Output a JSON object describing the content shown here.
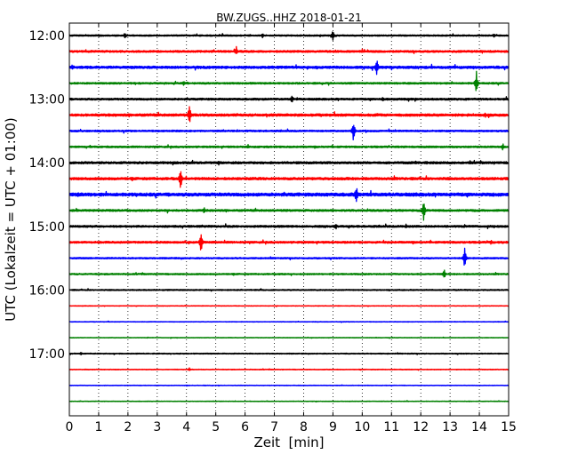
{
  "chart_data": {
    "type": "line",
    "title": "BW.ZUGS..HHZ 2018-01-21",
    "xlabel": "Zeit  [min]",
    "ylabel": "UTC (Lokalzeit = UTC + 01:00)",
    "xlim": [
      0,
      15
    ],
    "x_ticks": [
      "0",
      "1",
      "2",
      "3",
      "4",
      "5",
      "6",
      "7",
      "8",
      "9",
      "10",
      "11",
      "12",
      "13",
      "14",
      "15"
    ],
    "y_tick_labels": [
      "12:00",
      "13:00",
      "14:00",
      "15:00",
      "16:00",
      "17:00"
    ],
    "grid": "vertical dotted",
    "row_start": "12:00",
    "row_interval_minutes": 15,
    "colors": [
      "#000000",
      "#ff0000",
      "#0000ff",
      "#008000"
    ],
    "traces": [
      {
        "start": "12:00",
        "color": "#000000",
        "noise": 0.6,
        "events": [
          {
            "t": 1.9,
            "amp": 4
          },
          {
            "t": 6.6,
            "amp": 3
          },
          {
            "t": 9.0,
            "amp": 7
          },
          {
            "t": 14.5,
            "amp": 3
          }
        ]
      },
      {
        "start": "12:15",
        "color": "#ff0000",
        "noise": 0.8,
        "events": [
          {
            "t": 5.7,
            "amp": 6
          },
          {
            "t": 10.0,
            "amp": 3
          }
        ]
      },
      {
        "start": "12:30",
        "color": "#0000ff",
        "noise": 1.0,
        "events": [
          {
            "t": 0.1,
            "amp": 4
          },
          {
            "t": 10.5,
            "amp": 12
          }
        ]
      },
      {
        "start": "12:45",
        "color": "#008000",
        "noise": 0.7,
        "events": [
          {
            "t": 3.9,
            "amp": 4
          },
          {
            "t": 13.9,
            "amp": 16
          }
        ]
      },
      {
        "start": "13:00",
        "color": "#000000",
        "noise": 0.8,
        "events": [
          {
            "t": 7.6,
            "amp": 5
          },
          {
            "t": 10.7,
            "amp": 3
          }
        ]
      },
      {
        "start": "13:15",
        "color": "#ff0000",
        "noise": 1.0,
        "events": [
          {
            "t": 4.1,
            "amp": 14
          },
          {
            "t": 14.2,
            "amp": 4
          }
        ]
      },
      {
        "start": "13:30",
        "color": "#0000ff",
        "noise": 0.7,
        "events": [
          {
            "t": 9.7,
            "amp": 14
          }
        ]
      },
      {
        "start": "13:45",
        "color": "#008000",
        "noise": 0.7,
        "events": [
          {
            "t": 6.1,
            "amp": 3
          },
          {
            "t": 14.8,
            "amp": 5
          }
        ]
      },
      {
        "start": "14:00",
        "color": "#000000",
        "noise": 0.9,
        "events": [
          {
            "t": 5.1,
            "amp": 3
          },
          {
            "t": 12.2,
            "amp": 3
          }
        ]
      },
      {
        "start": "14:15",
        "color": "#ff0000",
        "noise": 1.0,
        "events": [
          {
            "t": 3.8,
            "amp": 14
          }
        ]
      },
      {
        "start": "14:30",
        "color": "#0000ff",
        "noise": 1.3,
        "events": [
          {
            "t": 0.3,
            "amp": 4
          },
          {
            "t": 9.8,
            "amp": 13
          }
        ]
      },
      {
        "start": "14:45",
        "color": "#008000",
        "noise": 0.8,
        "events": [
          {
            "t": 4.6,
            "amp": 4
          },
          {
            "t": 12.1,
            "amp": 14
          }
        ]
      },
      {
        "start": "15:00",
        "color": "#000000",
        "noise": 0.8,
        "events": [
          {
            "t": 9.1,
            "amp": 4
          },
          {
            "t": 11.5,
            "amp": 3
          }
        ]
      },
      {
        "start": "15:15",
        "color": "#ff0000",
        "noise": 0.8,
        "events": [
          {
            "t": 4.5,
            "amp": 15
          },
          {
            "t": 14.4,
            "amp": 3
          }
        ]
      },
      {
        "start": "15:30",
        "color": "#0000ff",
        "noise": 0.6,
        "events": [
          {
            "t": 13.5,
            "amp": 13
          }
        ]
      },
      {
        "start": "15:45",
        "color": "#008000",
        "noise": 0.6,
        "events": [
          {
            "t": 12.8,
            "amp": 6
          }
        ]
      },
      {
        "start": "16:00",
        "color": "#000000",
        "noise": 0.5,
        "events": []
      },
      {
        "start": "16:15",
        "color": "#ff0000",
        "noise": 0.25,
        "events": []
      },
      {
        "start": "16:30",
        "color": "#0000ff",
        "noise": 0.25,
        "events": []
      },
      {
        "start": "16:45",
        "color": "#008000",
        "noise": 0.25,
        "events": []
      },
      {
        "start": "17:00",
        "color": "#000000",
        "noise": 0.4,
        "events": [
          {
            "t": 0.4,
            "amp": 2
          }
        ]
      },
      {
        "start": "17:15",
        "color": "#ff0000",
        "noise": 0.3,
        "events": [
          {
            "t": 4.1,
            "amp": 2
          }
        ]
      },
      {
        "start": "17:30",
        "color": "#0000ff",
        "noise": 0.25,
        "events": []
      },
      {
        "start": "17:45",
        "color": "#008000",
        "noise": 0.25,
        "events": []
      }
    ]
  }
}
